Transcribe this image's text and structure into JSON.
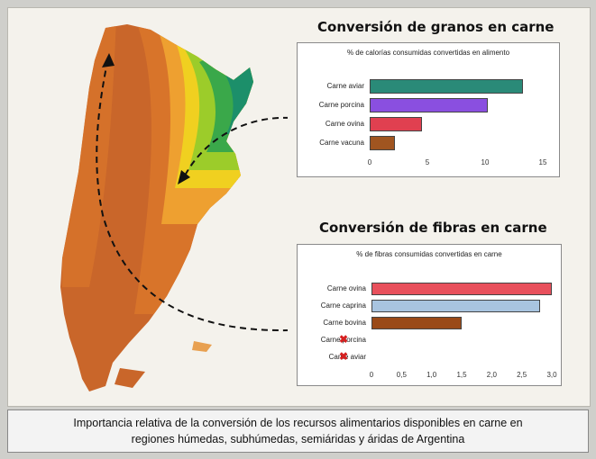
{
  "top_chart": {
    "title": "Conversión de granos en carne",
    "subtitle": "% de calorías consumidas convertidas en alimento",
    "chart_data": {
      "type": "bar",
      "orientation": "horizontal",
      "categories": [
        "Carne aviar",
        "Carne porcina",
        "Carne ovina",
        "Carne vacuna"
      ],
      "values": [
        13.3,
        10.2,
        4.5,
        2.2
      ],
      "xlim": [
        0,
        15
      ],
      "ticks": [
        "0",
        "5",
        "10",
        "15"
      ],
      "colors": [
        "#2a8a78",
        "#8a4fe0",
        "#e04050",
        "#a05520"
      ]
    }
  },
  "bottom_chart": {
    "title": "Conversión de fibras en carne",
    "subtitle": "% de fibras consumidas convertidas en carne",
    "chart_data": {
      "type": "bar",
      "orientation": "horizontal",
      "categories": [
        "Carne ovina",
        "Carne caprina",
        "Carne bovina",
        "Carne porcina",
        "Carne aviar"
      ],
      "values": [
        3.0,
        2.8,
        1.5,
        0,
        0
      ],
      "excluded": [
        false,
        false,
        false,
        true,
        true
      ],
      "xlim": [
        0,
        3.0
      ],
      "ticks": [
        "0",
        "0,5",
        "1,0",
        "1,5",
        "2,0",
        "2,5",
        "3,0"
      ],
      "colors": [
        "#e8505c",
        "#a8c4e0",
        "#9a4a18",
        "",
        ""
      ]
    }
  },
  "caption": {
    "line1": "Importancia relativa de la conversión de los recursos alimentarios disponibles en carne en",
    "line2": "regiones húmedas, subhúmedas, semiáridas y áridas de Argentina"
  },
  "map": {
    "colors": [
      "#1c8f6a",
      "#3aa84a",
      "#9ccc2a",
      "#f0d020",
      "#eea030",
      "#d8742a",
      "#c9662a"
    ]
  }
}
